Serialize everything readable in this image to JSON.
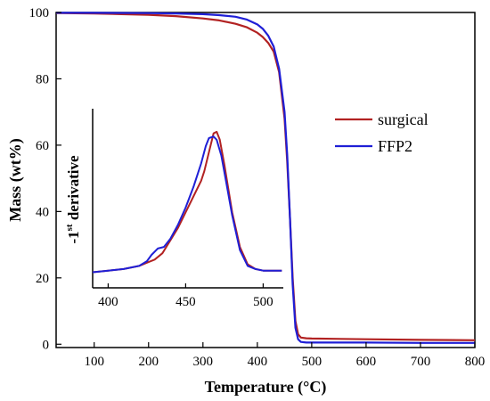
{
  "chart_data": [
    {
      "type": "line",
      "id": "main",
      "xlabel": "Temperature (°C)",
      "ylabel": "Mass (wt%)",
      "xlim": [
        30,
        800
      ],
      "ylim": [
        -1,
        100
      ],
      "xticks": [
        100,
        200,
        300,
        400,
        500,
        600,
        700,
        800
      ],
      "yticks": [
        0,
        20,
        40,
        60,
        80,
        100
      ],
      "grid": false,
      "legend": {
        "position": "right",
        "entries": [
          "surgical",
          "FFP2"
        ]
      },
      "series": [
        {
          "name": "surgical",
          "color": "#b22222",
          "x": [
            30,
            100,
            150,
            200,
            250,
            300,
            330,
            360,
            380,
            400,
            410,
            420,
            430,
            440,
            450,
            455,
            460,
            465,
            470,
            475,
            480,
            490,
            500,
            600,
            700,
            800
          ],
          "y": [
            99.8,
            99.7,
            99.5,
            99.3,
            98.9,
            98.2,
            97.6,
            96.6,
            95.6,
            93.9,
            92.6,
            90.8,
            88.2,
            82.0,
            68.0,
            55.0,
            38.0,
            20.0,
            7.0,
            3.0,
            2.0,
            1.8,
            1.7,
            1.5,
            1.3,
            1.2
          ]
        },
        {
          "name": "FFP2",
          "color": "#1f1fd6",
          "x": [
            30,
            100,
            200,
            250,
            300,
            330,
            360,
            380,
            400,
            410,
            420,
            430,
            440,
            450,
            455,
            460,
            465,
            470,
            475,
            480,
            490,
            500,
            600,
            700,
            800
          ],
          "y": [
            99.9,
            99.9,
            99.8,
            99.7,
            99.5,
            99.2,
            98.7,
            97.9,
            96.4,
            95.1,
            93.0,
            89.7,
            83.0,
            70.0,
            57.0,
            38.0,
            18.0,
            5.0,
            1.5,
            0.7,
            0.5,
            0.5,
            0.5,
            0.4,
            0.4
          ]
        }
      ]
    },
    {
      "type": "line",
      "id": "inset",
      "xlabel": "",
      "ylabel": "-1st derivative",
      "xlim": [
        390,
        513
      ],
      "ylim": [
        0,
        1
      ],
      "xticks": [
        400,
        450,
        500
      ],
      "yticks": [],
      "series": [
        {
          "name": "surgical",
          "color": "#b22222",
          "x": [
            390,
            400,
            410,
            420,
            425,
            430,
            435,
            440,
            445,
            450,
            455,
            460,
            462,
            465,
            468,
            470,
            472,
            475,
            480,
            485,
            490,
            495,
            500,
            512
          ],
          "y": [
            0.02,
            0.03,
            0.04,
            0.06,
            0.08,
            0.1,
            0.14,
            0.22,
            0.3,
            0.4,
            0.5,
            0.6,
            0.66,
            0.78,
            0.9,
            0.91,
            0.86,
            0.7,
            0.4,
            0.18,
            0.07,
            0.04,
            0.03,
            0.03
          ]
        },
        {
          "name": "FFP2",
          "color": "#1f1fd6",
          "x": [
            390,
            400,
            410,
            420,
            425,
            428,
            432,
            436,
            440,
            445,
            450,
            455,
            460,
            463,
            465,
            468,
            470,
            473,
            476,
            480,
            485,
            490,
            495,
            500,
            512
          ],
          "y": [
            0.02,
            0.03,
            0.04,
            0.06,
            0.09,
            0.13,
            0.17,
            0.18,
            0.23,
            0.32,
            0.43,
            0.56,
            0.71,
            0.82,
            0.87,
            0.88,
            0.86,
            0.76,
            0.6,
            0.38,
            0.16,
            0.06,
            0.04,
            0.03,
            0.03
          ]
        }
      ]
    }
  ]
}
